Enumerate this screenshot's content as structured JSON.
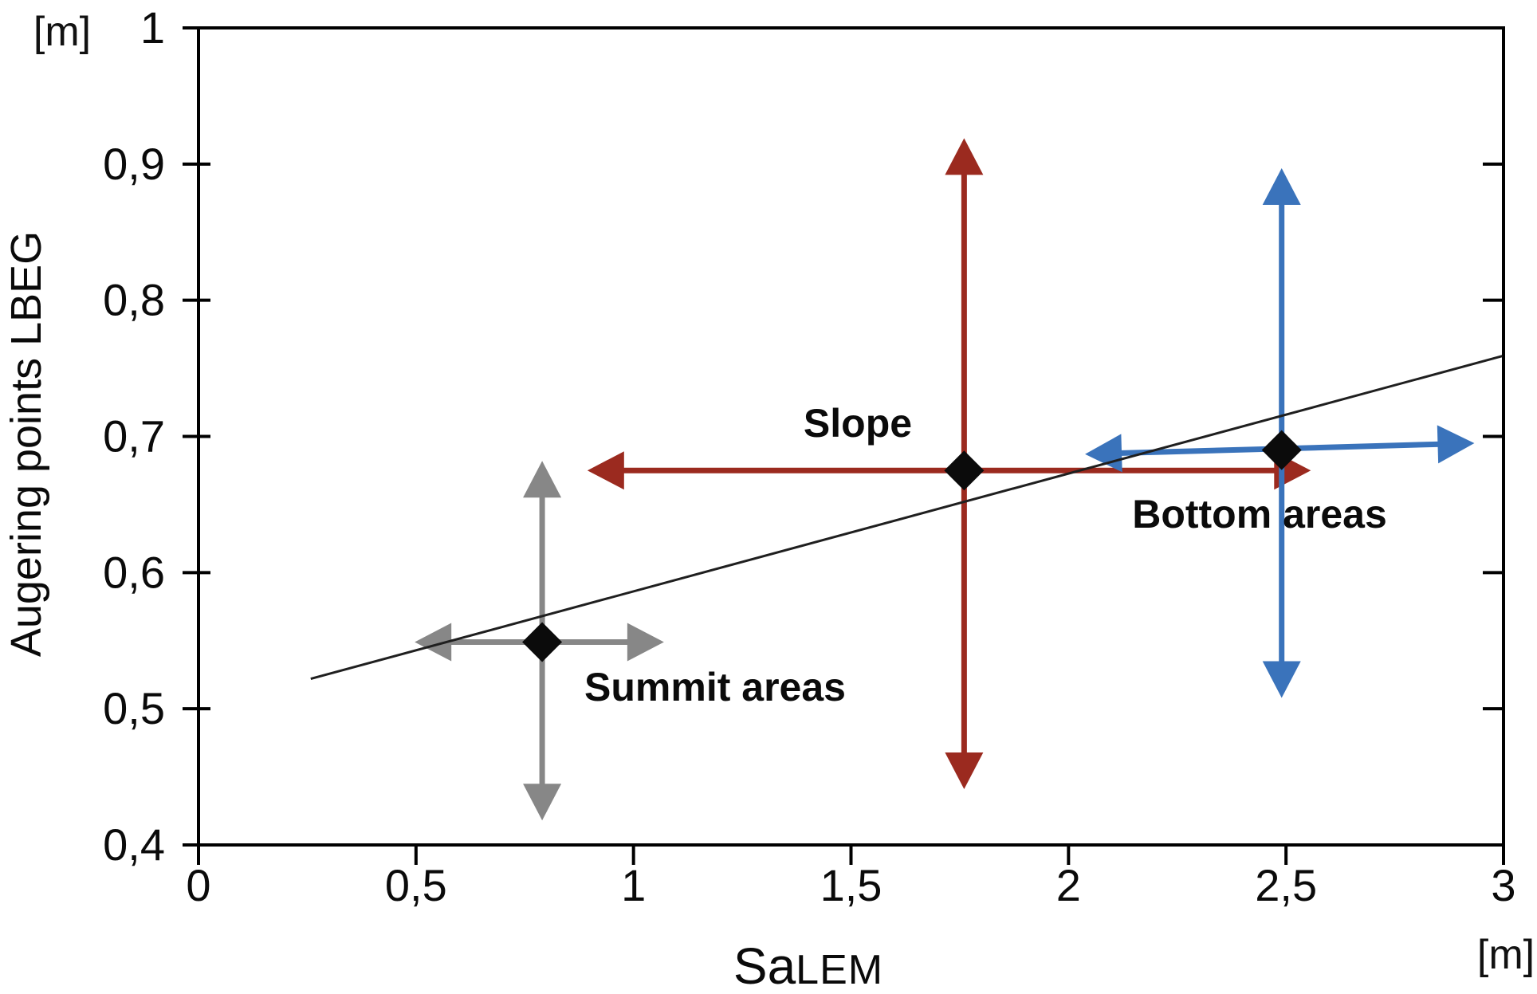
{
  "page": {
    "background": "#ffffff",
    "text_color": "#0a0a0a",
    "axis_color": "#000000"
  },
  "chart_data": {
    "type": "scatter",
    "title": "",
    "x_axis": {
      "title_main": "Sa",
      "title_sub": "LEM",
      "unit": "[m]",
      "range": [
        0,
        3
      ],
      "ticks": [
        {
          "v": 0,
          "label": "0"
        },
        {
          "v": 0.5,
          "label": "0,5"
        },
        {
          "v": 1,
          "label": "1"
        },
        {
          "v": 1.5,
          "label": "1,5"
        },
        {
          "v": 2,
          "label": "2"
        },
        {
          "v": 2.5,
          "label": "2,5"
        },
        {
          "v": 3,
          "label": "3"
        }
      ]
    },
    "y_axis": {
      "title": "Augering points LBEG",
      "unit": "[m]",
      "range": [
        0.4,
        1.0
      ],
      "ticks": [
        {
          "v": 0.4,
          "label": "0,4"
        },
        {
          "v": 0.5,
          "label": "0,5"
        },
        {
          "v": 0.6,
          "label": "0,6"
        },
        {
          "v": 0.7,
          "label": "0,7"
        },
        {
          "v": 0.8,
          "label": "0,8"
        },
        {
          "v": 0.9,
          "label": "0,9"
        },
        {
          "v": 1,
          "label": "1"
        }
      ]
    },
    "marker": {
      "shape": "diamond",
      "color": "#0b0b0b"
    },
    "series": [
      {
        "name": "Summit areas",
        "color": "#878787",
        "center": {
          "x": 0.79,
          "y": 0.549
        },
        "x_err": {
          "x1": 0.497,
          "y1": 0.549,
          "x2": 1.07,
          "y2": 0.549
        },
        "y_err": {
          "y1": 0.418,
          "y2": 0.682
        }
      },
      {
        "name": "Slope",
        "color": "#9b2a1f",
        "center": {
          "x": 1.76,
          "y": 0.675
        },
        "x_err": {
          "x1": 0.894,
          "y1": 0.675,
          "x2": 2.557,
          "y2": 0.675
        },
        "y_err": {
          "y1": 0.441,
          "y2": 0.919
        }
      },
      {
        "name": "Bottom areas",
        "color": "#3a73bb",
        "center": {
          "x": 2.49,
          "y": 0.69
        },
        "x_err": {
          "x1": 2.038,
          "y1": 0.687,
          "x2": 2.933,
          "y2": 0.695
        },
        "y_err": {
          "y1": 0.508,
          "y2": 0.897
        }
      }
    ],
    "trendline": {
      "color": "#1f1f1f",
      "x1": 0.258,
      "y1": 0.522,
      "x2": 2.997,
      "y2": 0.759
    },
    "legend_position": "none",
    "grid": false
  }
}
